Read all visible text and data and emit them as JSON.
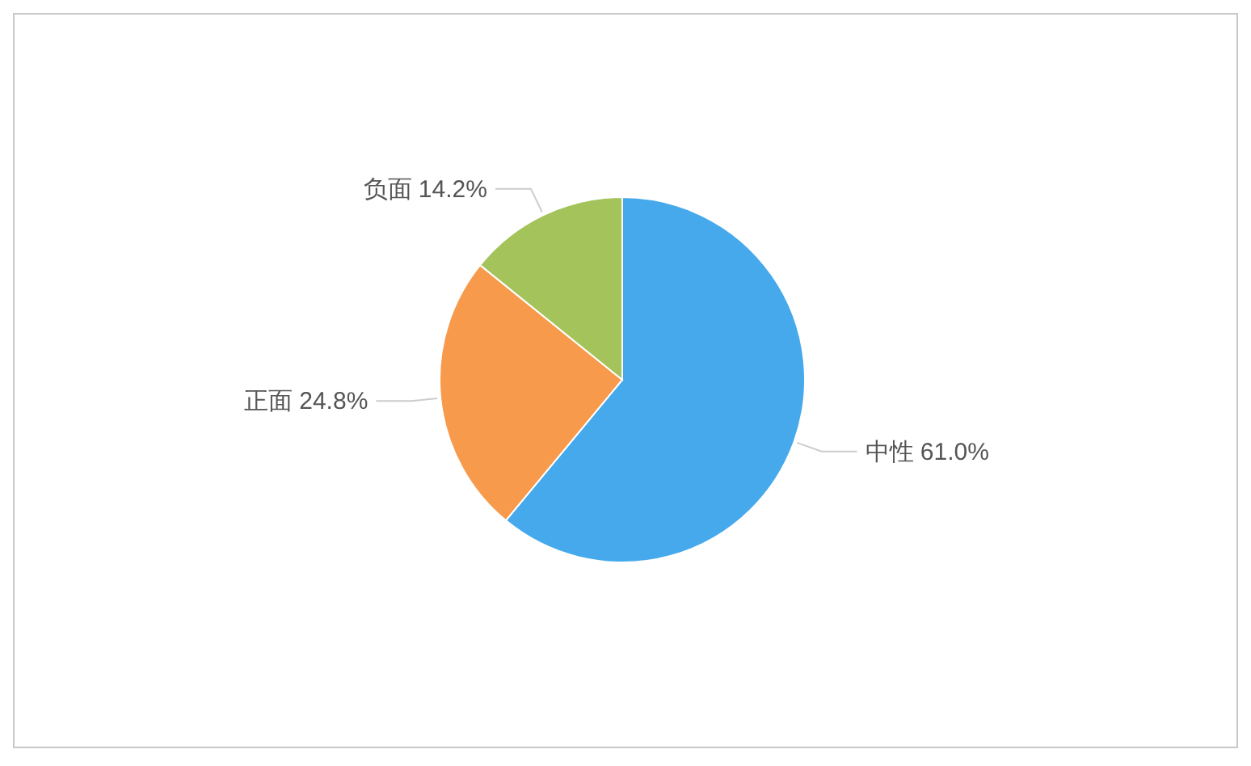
{
  "chart_data": {
    "type": "pie",
    "categories": [
      "中性",
      "正面",
      "负面"
    ],
    "values": [
      61.0,
      24.8,
      14.2
    ],
    "value_labels": [
      "61.0%",
      "24.8%",
      "14.2%"
    ],
    "colors": [
      "#45a9ec",
      "#f79a4b",
      "#a5c35b"
    ]
  }
}
